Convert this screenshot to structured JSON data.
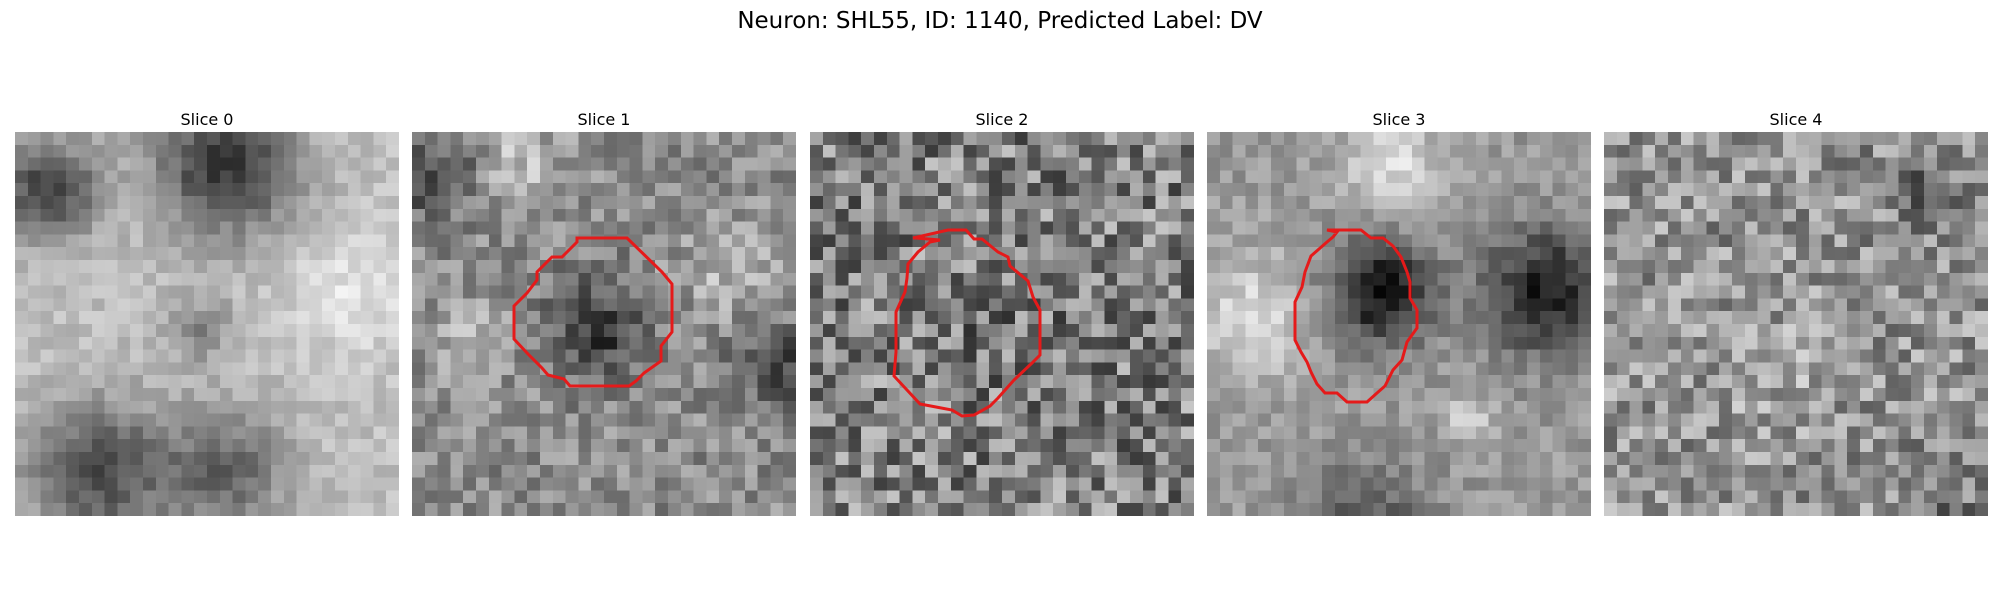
{
  "figure": {
    "title": "Neuron: SHL55, ID: 1140, Predicted Label: DV",
    "contour_color": "#e51a1a"
  },
  "panels": [
    {
      "title": "Slice 0",
      "has_contour": false
    },
    {
      "title": "Slice 1",
      "has_contour": true
    },
    {
      "title": "Slice 2",
      "has_contour": true
    },
    {
      "title": "Slice 3",
      "has_contour": true
    },
    {
      "title": "Slice 4",
      "has_contour": false
    }
  ]
}
